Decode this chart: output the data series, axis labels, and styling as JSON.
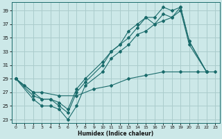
{
  "xlabel": "Humidex (Indice chaleur)",
  "bg_color": "#cce8e8",
  "grid_color": "#aacccc",
  "line_color": "#1a6b6b",
  "xlim": [
    -0.5,
    23.5
  ],
  "ylim": [
    22.5,
    40.2
  ],
  "xticks": [
    0,
    1,
    2,
    3,
    4,
    5,
    6,
    7,
    8,
    9,
    10,
    11,
    12,
    13,
    14,
    15,
    16,
    17,
    18,
    19,
    20,
    21,
    22,
    23
  ],
  "yticks": [
    23,
    25,
    27,
    29,
    31,
    33,
    35,
    37,
    39
  ],
  "s1_x": [
    0,
    2,
    3,
    4,
    5,
    6,
    7,
    8,
    10,
    11,
    12,
    13,
    14,
    15,
    16,
    17,
    18,
    19,
    20,
    22
  ],
  "s1_y": [
    29,
    26,
    25,
    25,
    24.5,
    23,
    25,
    28,
    30,
    32,
    33,
    34,
    35.5,
    36,
    37,
    37.5,
    38,
    39,
    34,
    30
  ],
  "s2_x": [
    0,
    2,
    3,
    4,
    5,
    6,
    7,
    8,
    10,
    11,
    12,
    13,
    14,
    15,
    16,
    17,
    18,
    19,
    20,
    22
  ],
  "s2_y": [
    29,
    26.5,
    26,
    26,
    25,
    24,
    27,
    28.5,
    31,
    33,
    34,
    35,
    36.5,
    38,
    37,
    38.5,
    38,
    39.5,
    34.5,
    30
  ],
  "s3_x": [
    0,
    2,
    3,
    4,
    5,
    6,
    7,
    8,
    10,
    11,
    12,
    13,
    14,
    15,
    16,
    17,
    18,
    19,
    20,
    22
  ],
  "s3_y": [
    29,
    27,
    26,
    26,
    25.5,
    24.5,
    27.5,
    29,
    31.5,
    33,
    34,
    36,
    37,
    38,
    38,
    39.5,
    39,
    39.5,
    34.5,
    30
  ],
  "s4_x": [
    0,
    1,
    2,
    3,
    5,
    7,
    9,
    11,
    13,
    15,
    17,
    19,
    21,
    23
  ],
  "s4_y": [
    29,
    28,
    27,
    27,
    26.5,
    26.5,
    27.5,
    28,
    29,
    29.5,
    30,
    30,
    30,
    30
  ]
}
